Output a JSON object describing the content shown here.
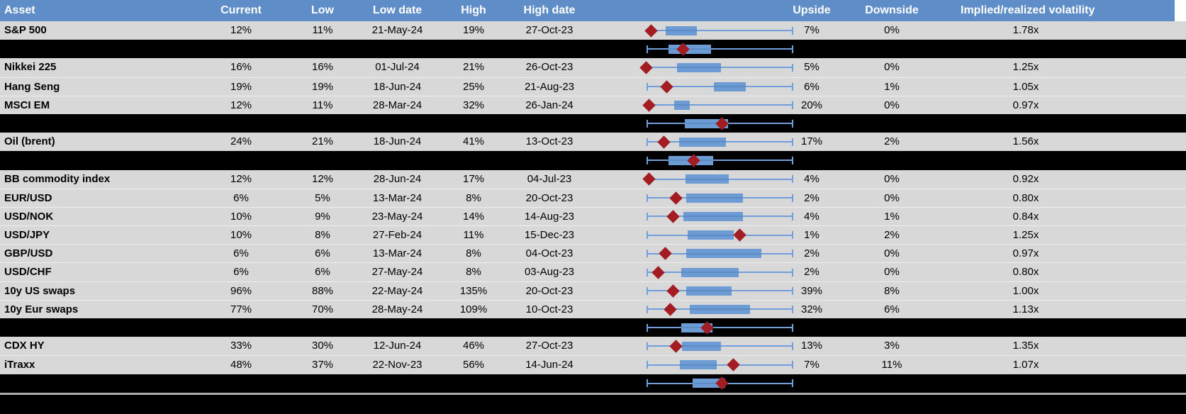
{
  "header": {
    "asset": "Asset",
    "current": "Current",
    "low": "Low",
    "low_date": "Low date",
    "high": "High",
    "high_date": "High date",
    "upside": "Upside",
    "downside": "Downside",
    "implied": "Implied/realized volatility"
  },
  "colors": {
    "header_bg": "#5F8DC7",
    "header_text": "#FFFFFF",
    "row_bg": "#D8D8D8",
    "band_bg": "#000000",
    "box_fill": "#6D9BD3",
    "whisker": "#6FA0DC",
    "diamond": "#A21C21",
    "separator_line": "#ABABAB"
  },
  "chart_data": {
    "type": "table",
    "subtype": "box-whisker range per row, red diamond marker = current implied vol within range; axis not labeled, geometry stored as percent of chart cell width",
    "columns": [
      "Asset",
      "Current",
      "Low",
      "Low date",
      "High",
      "High date",
      "Range chart",
      "Upside",
      "Downside",
      "Implied/realized volatility"
    ],
    "rows": [
      {
        "type": "data",
        "asset": "S&P 500",
        "current": "12%",
        "low": "11%",
        "low_date": "21-May-24",
        "high": "19%",
        "high_date": "27-Oct-23",
        "upside": "7%",
        "downside": "0%",
        "implied": "1.78x",
        "box": {
          "wl": 25.7,
          "cap_left": false,
          "b1": 32.7,
          "b2": 48.2,
          "d": 25.7,
          "wr": 95.8
        }
      },
      {
        "type": "summary",
        "box": {
          "wl": 23.6,
          "cap_left": true,
          "b1": 34.2,
          "b2": 55.3,
          "d": 41.5,
          "wr": 95.8
        }
      },
      {
        "type": "data",
        "asset": "Nikkei 225",
        "current": "16%",
        "low": "16%",
        "low_date": "01-Jul-24",
        "high": "21%",
        "high_date": "26-Oct-23",
        "upside": "5%",
        "downside": "0%",
        "implied": "1.25x",
        "box": {
          "wl": 23.2,
          "cap_left": false,
          "b1": 38.4,
          "b2": 60.2,
          "d": 23.2,
          "wr": 95.8
        }
      },
      {
        "type": "data",
        "asset": "Hang Seng",
        "current": "19%",
        "low": "19%",
        "low_date": "18-Jun-24",
        "high": "25%",
        "high_date": "21-Aug-23",
        "upside": "6%",
        "downside": "1%",
        "implied": "1.05x",
        "box": {
          "wl": 23.6,
          "cap_left": true,
          "b1": 56.7,
          "b2": 72.5,
          "d": 33.1,
          "wr": 95.8
        }
      },
      {
        "type": "data",
        "asset": "MSCI EM",
        "current": "12%",
        "low": "11%",
        "low_date": "28-Mar-24",
        "high": "32%",
        "high_date": "26-Jan-24",
        "upside": "20%",
        "downside": "0%",
        "implied": "0.97x",
        "box": {
          "wl": 24.3,
          "cap_left": false,
          "b1": 37.0,
          "b2": 44.7,
          "d": 24.3,
          "wr": 95.8
        }
      },
      {
        "type": "summary",
        "box": {
          "wl": 23.6,
          "cap_left": true,
          "b1": 42.3,
          "b2": 63.7,
          "d": 60.9,
          "wr": 95.8
        }
      },
      {
        "type": "data",
        "asset": "Oil (brent)",
        "current": "24%",
        "low": "21%",
        "low_date": "18-Jun-24",
        "high": "41%",
        "high_date": "13-Oct-23",
        "upside": "17%",
        "downside": "2%",
        "implied": "1.56x",
        "box": {
          "wl": 23.6,
          "cap_left": true,
          "b1": 39.4,
          "b2": 62.7,
          "d": 32.0,
          "wr": 95.8
        }
      },
      {
        "type": "summary",
        "box": {
          "wl": 23.6,
          "cap_left": true,
          "b1": 34.2,
          "b2": 56.3,
          "d": 46.5,
          "wr": 95.8
        }
      },
      {
        "type": "data",
        "asset": "BB commodity index",
        "current": "12%",
        "low": "12%",
        "low_date": "28-Jun-24",
        "high": "17%",
        "high_date": "04-Jul-23",
        "upside": "4%",
        "downside": "0%",
        "implied": "0.92x",
        "box": {
          "wl": 24.6,
          "cap_left": false,
          "b1": 42.6,
          "b2": 64.1,
          "d": 24.6,
          "wr": 95.8
        }
      },
      {
        "type": "data",
        "asset": "EUR/USD",
        "current": "6%",
        "low": "5%",
        "low_date": "13-Mar-24",
        "high": "8%",
        "high_date": "20-Oct-23",
        "upside": "2%",
        "downside": "0%",
        "implied": "0.80x",
        "box": {
          "wl": 23.6,
          "cap_left": true,
          "b1": 43.0,
          "b2": 71.1,
          "d": 38.0,
          "wr": 95.8
        }
      },
      {
        "type": "data",
        "asset": "USD/NOK",
        "current": "10%",
        "low": "9%",
        "low_date": "23-May-24",
        "high": "14%",
        "high_date": "14-Aug-23",
        "upside": "4%",
        "downside": "1%",
        "implied": "0.84x",
        "box": {
          "wl": 23.6,
          "cap_left": true,
          "b1": 41.5,
          "b2": 71.1,
          "d": 36.3,
          "wr": 95.8
        }
      },
      {
        "type": "data",
        "asset": "USD/JPY",
        "current": "10%",
        "low": "8%",
        "low_date": "27-Feb-24",
        "high": "11%",
        "high_date": "15-Dec-23",
        "upside": "1%",
        "downside": "2%",
        "implied": "1.25x",
        "box": {
          "wl": 23.6,
          "cap_left": true,
          "b1": 43.7,
          "b2": 66.5,
          "d": 69.7,
          "wr": 95.8
        }
      },
      {
        "type": "data",
        "asset": "GBP/USD",
        "current": "6%",
        "low": "6%",
        "low_date": "13-Mar-24",
        "high": "8%",
        "high_date": "04-Oct-23",
        "upside": "2%",
        "downside": "0%",
        "implied": "0.97x",
        "box": {
          "wl": 23.6,
          "cap_left": true,
          "b1": 43.0,
          "b2": 80.3,
          "d": 32.4,
          "wr": 95.8
        }
      },
      {
        "type": "data",
        "asset": "USD/CHF",
        "current": "6%",
        "low": "6%",
        "low_date": "27-May-24",
        "high": "8%",
        "high_date": "03-Aug-23",
        "upside": "2%",
        "downside": "0%",
        "implied": "0.80x",
        "box": {
          "wl": 23.6,
          "cap_left": true,
          "b1": 40.5,
          "b2": 69.0,
          "d": 28.9,
          "wr": 95.8
        }
      },
      {
        "type": "data",
        "asset": "10y US swaps",
        "current": "96%",
        "low": "88%",
        "low_date": "22-May-24",
        "high": "135%",
        "high_date": "20-Oct-23",
        "upside": "39%",
        "downside": "8%",
        "implied": "1.00x",
        "box": {
          "wl": 23.6,
          "cap_left": true,
          "b1": 43.0,
          "b2": 65.5,
          "d": 36.3,
          "wr": 95.8
        }
      },
      {
        "type": "data",
        "asset": "10y Eur swaps",
        "current": "77%",
        "low": "70%",
        "low_date": "28-May-24",
        "high": "109%",
        "high_date": "10-Oct-23",
        "upside": "32%",
        "downside": "6%",
        "implied": "1.13x",
        "box": {
          "wl": 23.6,
          "cap_left": true,
          "b1": 44.7,
          "b2": 74.6,
          "d": 35.2,
          "wr": 95.8
        }
      },
      {
        "type": "summary",
        "box": {
          "wl": 23.6,
          "cap_left": true,
          "b1": 40.5,
          "b2": 56.0,
          "d": 53.5,
          "wr": 95.8
        }
      },
      {
        "type": "data",
        "asset": "CDX HY",
        "current": "33%",
        "low": "30%",
        "low_date": "12-Jun-24",
        "high": "46%",
        "high_date": "27-Oct-23",
        "upside": "13%",
        "downside": "3%",
        "implied": "1.35x",
        "box": {
          "wl": 23.6,
          "cap_left": true,
          "b1": 40.8,
          "b2": 60.2,
          "d": 37.7,
          "wr": 95.8
        }
      },
      {
        "type": "data",
        "asset": "iTraxx",
        "current": "48%",
        "low": "37%",
        "low_date": "22-Nov-23",
        "high": "56%",
        "high_date": "14-Jun-24",
        "upside": "7%",
        "downside": "11%",
        "implied": "1.07x",
        "box": {
          "wl": 23.6,
          "cap_left": true,
          "b1": 39.8,
          "b2": 58.1,
          "d": 66.5,
          "wr": 95.8
        }
      },
      {
        "type": "summary",
        "box": {
          "wl": 23.6,
          "cap_left": true,
          "b1": 46.1,
          "b2": 62.3,
          "d": 60.6,
          "wr": 95.8
        }
      }
    ]
  }
}
